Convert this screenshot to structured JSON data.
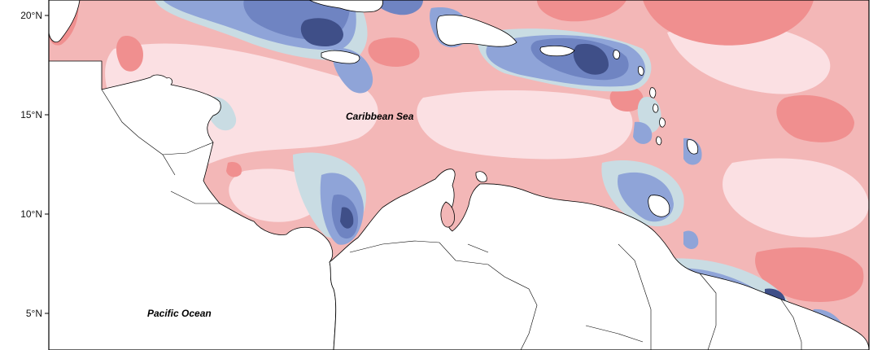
{
  "map": {
    "labels": {
      "caribbean_sea": "Caribbean Sea",
      "pacific_ocean": "Pacific Ocean"
    },
    "lat_ticks": [
      {
        "key": "lat20",
        "label": "20°N",
        "lat": 20
      },
      {
        "key": "lat15",
        "label": "15°N",
        "lat": 15
      },
      {
        "key": "lat10",
        "label": "10°N",
        "lat": 10
      },
      {
        "key": "lat5",
        "label": "5°N",
        "lat": 5
      }
    ],
    "palette": {
      "strong_positive": "#f08f8f",
      "positive": "#f3b7b7",
      "weak_positive": "#fbe0e3",
      "near_zero": "#c9dce3",
      "weak_negative": "#8fa4d8",
      "negative": "#6f84c2",
      "strong_negative": "#3f4f88",
      "land": "#ffffff",
      "coastline": "#000000"
    }
  }
}
